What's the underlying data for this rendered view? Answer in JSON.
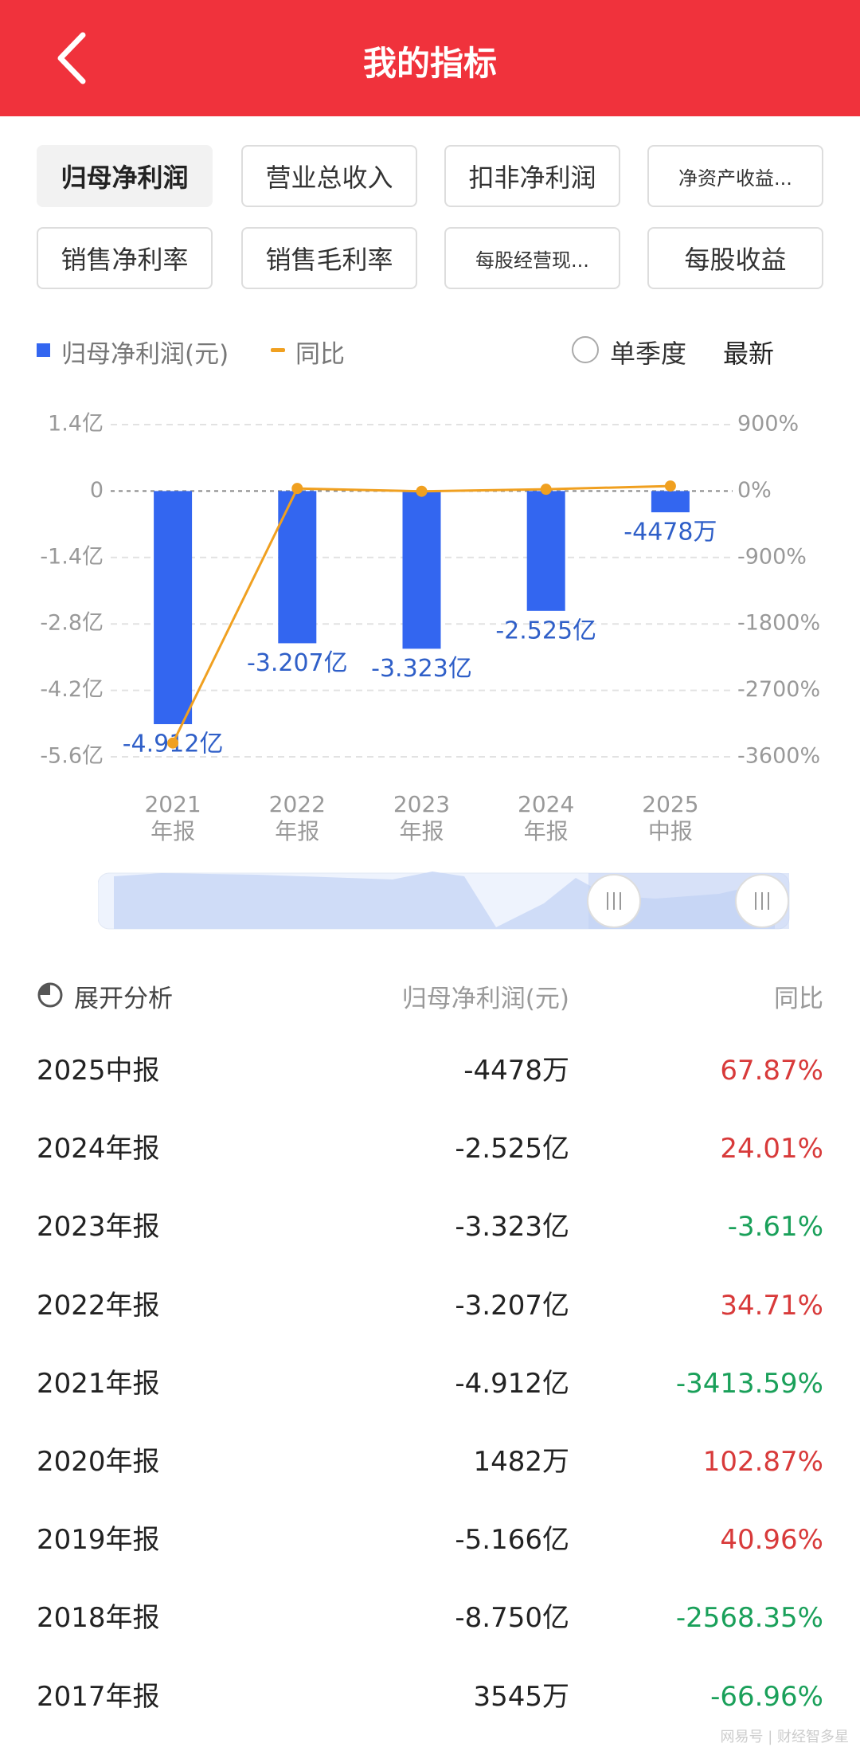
{
  "header": {
    "title": "我的指标"
  },
  "tabs": [
    "归母净利润",
    "营业总收入",
    "扣非净利润",
    "净资产收益...",
    "销售净利率",
    "销售毛利率",
    "每股经营现...",
    "每股收益"
  ],
  "selected_tab": 0,
  "controls": {
    "single_quarter": "单季度",
    "latest": "最新"
  },
  "chart_data": {
    "type": "bar",
    "categories": [
      "2021年报",
      "2022年报",
      "2023年报",
      "2024年报",
      "2025中报"
    ],
    "series": [
      {
        "name": "归母净利润(元)",
        "color": "#3366f0",
        "values": [
          -491200000,
          -320700000,
          -332300000,
          -252500000,
          -44780000
        ],
        "value_labels": [
          "-4.912亿",
          "-3.207亿",
          "-3.323亿",
          "-2.525亿",
          "-4478万"
        ]
      },
      {
        "name": "同比",
        "type": "line",
        "axis": "y2",
        "color": "#f0a020",
        "values": [
          -3413.59,
          34.71,
          -3.61,
          24.01,
          67.87
        ]
      }
    ],
    "ylim": [
      -560000000,
      140000000
    ],
    "yticks": [
      {
        "value": 140000000,
        "label": "1.4亿"
      },
      0,
      {
        "value": -140000000,
        "label": "-1.4亿"
      },
      {
        "value": -280000000,
        "label": "-2.8亿"
      },
      {
        "value": -420000000,
        "label": "-4.2亿"
      },
      {
        "value": -560000000,
        "label": "-5.6亿"
      }
    ],
    "y2lim": [
      -3600,
      900
    ],
    "y2ticks": [
      {
        "value": 900,
        "label": "900%"
      },
      {
        "value": 0,
        "label": "0%"
      },
      {
        "value": -900,
        "label": "-900%"
      },
      {
        "value": -1800,
        "label": "-1800%"
      },
      {
        "value": -2700,
        "label": "-2700%"
      },
      {
        "value": -3600,
        "label": "-3600%"
      }
    ],
    "grid": true
  },
  "table": {
    "header": [
      "展开分析",
      "归母净利润(元)",
      "同比"
    ],
    "rows": [
      [
        "2025中报",
        "-4478万",
        "67.87%"
      ],
      [
        "2024年报",
        "-2.525亿",
        "24.01%"
      ],
      [
        "2023年报",
        "-3.323亿",
        "-3.61%"
      ],
      [
        "2022年报",
        "-3.207亿",
        "34.71%"
      ],
      [
        "2021年报",
        "-4.912亿",
        "-3413.59%"
      ],
      [
        "2020年报",
        "1482万",
        "102.87%"
      ],
      [
        "2019年报",
        "-5.166亿",
        "40.96%"
      ],
      [
        "2018年报",
        "-8.750亿",
        "-2568.35%"
      ],
      [
        "2017年报",
        "3545万",
        "-66.96%"
      ]
    ]
  },
  "watermark": "网易号 | 财经智多星"
}
